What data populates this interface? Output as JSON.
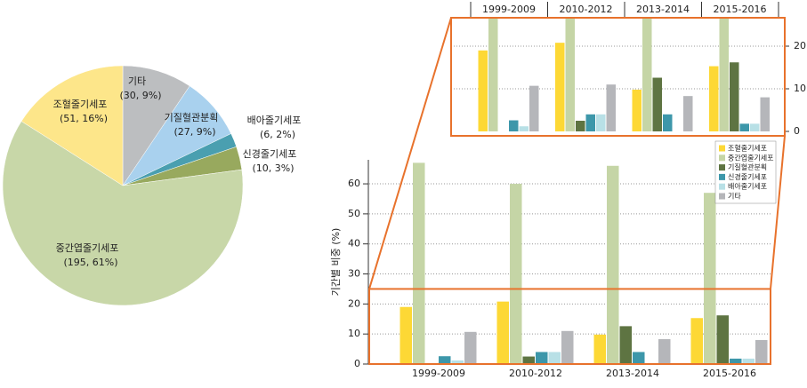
{
  "chart_data": [
    {
      "type": "pie",
      "categories": [
        "기타",
        "기질혈관분획",
        "배아줄기세포",
        "신경줄기세포",
        "중간엽줄기세포",
        "조혈줄기세포"
      ],
      "values": [
        30,
        27,
        6,
        10,
        195,
        51
      ],
      "value_labels": [
        "(30, 9%)",
        "(27, 9%)",
        "(6, 2%)",
        "(10, 3%)",
        "(195, 61%)",
        "(51, 16%)"
      ],
      "colors": [
        "#bcbec0",
        "#a9d1ee",
        "#4a9fb0",
        "#98a95e",
        "#c8d7a8",
        "#fde68a"
      ]
    },
    {
      "type": "bar",
      "y_label": "기간별 비중 (%)",
      "categories": [
        "1999-2009",
        "2010-2012",
        "2013-2014",
        "2015-2016"
      ],
      "series": [
        {
          "name": "조혈줄기세포",
          "color": "#fdd835",
          "values": [
            19,
            20.8,
            9.8,
            15.3
          ]
        },
        {
          "name": "중간엽줄기세포",
          "color": "#c5d5a6",
          "values": [
            67,
            60,
            66,
            57
          ]
        },
        {
          "name": "기질혈관분획",
          "color": "#5e7442",
          "values": [
            0,
            2.5,
            12.6,
            16.2
          ]
        },
        {
          "name": "신경줄기세포",
          "color": "#3d97aa",
          "values": [
            2.6,
            4,
            4,
            1.8
          ]
        },
        {
          "name": "배아줄기세포",
          "color": "#b8e0e6",
          "values": [
            1.2,
            4,
            0,
            1.8
          ]
        },
        {
          "name": "기타",
          "color": "#b5b6ba",
          "values": [
            10.7,
            11,
            8.3,
            8
          ]
        }
      ],
      "ylim": [
        0,
        68
      ],
      "yticks": [
        0,
        10,
        20,
        30,
        40,
        50,
        60
      ],
      "grid": true,
      "inset": {
        "ylim": [
          0,
          25
        ],
        "yticks": [
          0,
          10,
          20
        ]
      },
      "highlight_color": "#e8722c"
    }
  ]
}
